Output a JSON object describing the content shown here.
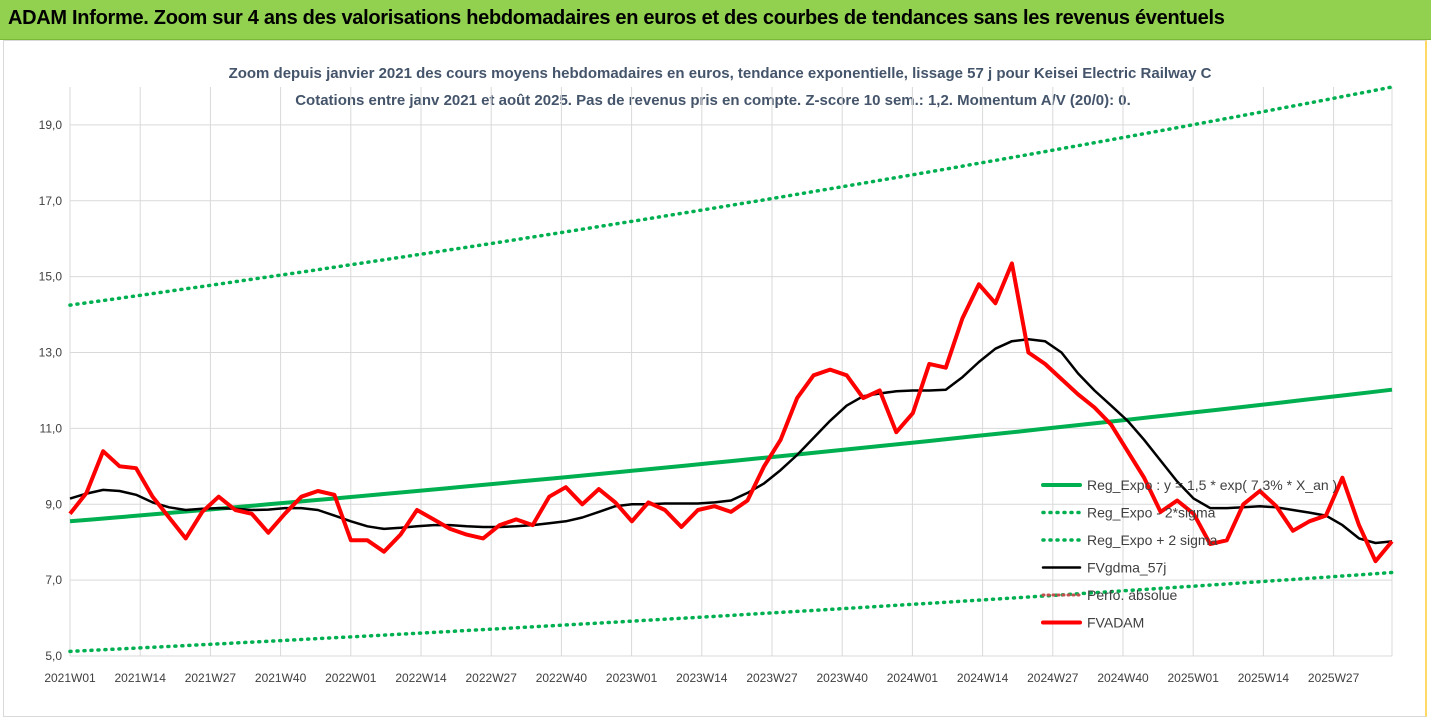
{
  "banner": {
    "text": "ADAM Informe. Zoom sur 4 ans des valorisations hebdomadaires en euros et des courbes de tendances sans les revenus éventuels"
  },
  "colors": {
    "banner_bg": "#92d050",
    "trend": "#00b050",
    "bands": "#00b050",
    "smooth": "#000000",
    "price": "#ff0000",
    "perf": "#c0504d"
  },
  "chart_data": {
    "type": "line",
    "title": "Zoom depuis janvier 2021 des cours moyens hebdomadaires en euros, tendance exponentielle, lissage 57 j pour Keisei Electric Railway C",
    "subtitle": "Cotations entre janv 2021 et août 2025.  Pas de revenus pris en compte. Z-score 10 sem.: 1,2. Momentum A/V (20/0): 0.",
    "x_tick_labels": [
      "2021W01",
      "2021W14",
      "2021W27",
      "2021W40",
      "2022W01",
      "2022W14",
      "2022W27",
      "2022W40",
      "2023W01",
      "2023W14",
      "2023W27",
      "2023W40",
      "2024W01",
      "2024W14",
      "2024W27",
      "2024W40",
      "2025W01",
      "2025W14",
      "2025W27"
    ],
    "y_ticks": [
      "5,0",
      "7,0",
      "9,0",
      "11,0",
      "13,0",
      "15,0",
      "17,0",
      "19,0"
    ],
    "ylim": [
      5,
      20
    ],
    "grid": true,
    "legend_position": "right",
    "x_weeks": [
      0,
      3,
      6,
      9,
      12,
      15,
      18,
      21,
      24,
      27,
      30,
      33,
      36,
      39,
      42,
      45,
      48,
      51,
      54,
      57,
      60,
      63,
      66,
      69,
      72,
      75,
      78,
      81,
      84,
      87,
      90,
      93,
      96,
      99,
      102,
      105,
      108,
      111,
      114,
      117,
      120,
      123,
      126,
      129,
      132,
      135,
      138,
      141,
      144,
      147,
      150,
      153,
      156,
      159,
      162,
      165,
      168,
      171,
      174,
      177,
      180,
      183,
      186,
      189,
      192,
      195,
      198,
      201,
      204,
      207,
      210,
      213,
      216,
      219,
      222,
      225,
      228,
      231,
      234,
      237,
      240
    ],
    "series": [
      {
        "name": "Reg_Expo : y = 1,5 * exp( 7,3% * X_an )",
        "style": "solid",
        "kind": "trend",
        "start": 8.55,
        "end": 12.02
      },
      {
        "name": "Reg_Expo - 2*sigma",
        "style": "dotted",
        "kind": "lower",
        "start": 5.12,
        "end": 7.2
      },
      {
        "name": "Reg_Expo + 2 sigma",
        "style": "dotted",
        "kind": "upper",
        "start": 14.25,
        "end": 20.0
      },
      {
        "name": "FVgdma_57j",
        "style": "solid",
        "kind": "smooth",
        "values": [
          9.15,
          9.28,
          9.38,
          9.35,
          9.25,
          9.05,
          8.92,
          8.85,
          8.88,
          8.9,
          8.88,
          8.85,
          8.86,
          8.9,
          8.9,
          8.85,
          8.7,
          8.55,
          8.42,
          8.35,
          8.38,
          8.42,
          8.45,
          8.45,
          8.42,
          8.4,
          8.4,
          8.42,
          8.45,
          8.5,
          8.55,
          8.65,
          8.8,
          8.95,
          9.0,
          9.0,
          9.02,
          9.02,
          9.02,
          9.05,
          9.1,
          9.3,
          9.55,
          9.9,
          10.3,
          10.75,
          11.2,
          11.6,
          11.85,
          11.92,
          11.98,
          12.0,
          12.0,
          12.02,
          12.35,
          12.75,
          13.1,
          13.3,
          13.35,
          13.3,
          13.0,
          12.45,
          12.0,
          11.6,
          11.2,
          10.7,
          10.15,
          9.6,
          9.15,
          8.9,
          8.9,
          8.92,
          8.95,
          8.92,
          8.85,
          8.78,
          8.7,
          8.45,
          8.1,
          7.98,
          8.02
        ]
      },
      {
        "name": "Perfo. absolue",
        "style": "dotted",
        "kind": "perf",
        "legend_only": true
      },
      {
        "name": "FVADAM",
        "style": "solid",
        "kind": "price",
        "values": [
          8.75,
          9.3,
          10.4,
          10.0,
          9.95,
          9.2,
          8.65,
          8.1,
          8.8,
          9.2,
          8.85,
          8.75,
          8.25,
          8.75,
          9.2,
          9.35,
          9.25,
          8.05,
          8.05,
          7.75,
          8.2,
          8.85,
          8.6,
          8.35,
          8.2,
          8.1,
          8.45,
          8.6,
          8.45,
          9.2,
          9.45,
          9.0,
          9.4,
          9.05,
          8.55,
          9.05,
          8.85,
          8.4,
          8.85,
          8.95,
          8.8,
          9.1,
          10.0,
          10.7,
          11.8,
          12.4,
          12.55,
          12.4,
          11.8,
          12.0,
          10.9,
          11.4,
          12.7,
          12.6,
          13.9,
          14.8,
          14.3,
          15.35,
          13.0,
          12.7,
          12.3,
          11.9,
          11.55,
          11.1,
          10.4,
          9.7,
          8.8,
          9.1,
          8.75,
          7.95,
          8.05,
          9.0,
          9.35,
          8.95,
          8.3,
          8.55,
          8.7,
          9.7,
          8.45,
          7.5,
          8.02
        ]
      }
    ]
  }
}
